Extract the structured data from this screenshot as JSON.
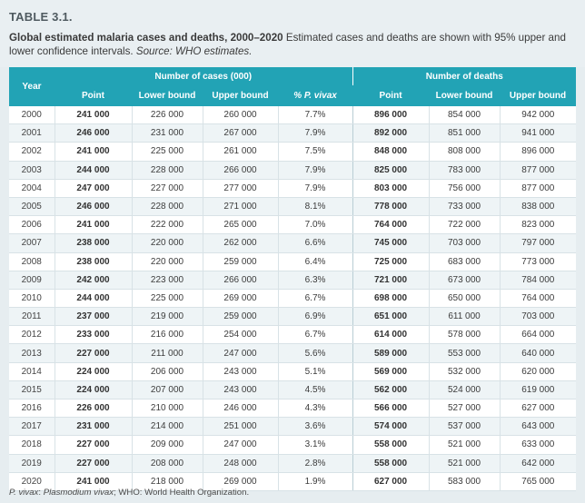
{
  "caption": {
    "table_label": "TABLE 3.1.",
    "title_bold": "Global estimated malaria cases and deaths, 2000–2020",
    "title_text": " Estimated cases and deaths are shown with 95% upper and lower confidence intervals. ",
    "title_source": "Source: WHO estimates."
  },
  "table": {
    "year_header": "Year",
    "cases_header": "Number of cases (000)",
    "deaths_header": "Number of deaths",
    "sub_headers": {
      "cases_point": "Point",
      "cases_lower": "Lower bound",
      "cases_upper": "Upper bound",
      "pvivax": "% P. vivax",
      "deaths_point": "Point",
      "deaths_lower": "Lower bound",
      "deaths_upper": "Upper bound"
    },
    "rows": [
      {
        "year": "2000",
        "cases_point": "241 000",
        "cases_lower": "226 000",
        "cases_upper": "260 000",
        "pvivax": "7.7%",
        "deaths_point": "896 000",
        "deaths_lower": "854 000",
        "deaths_upper": "942 000"
      },
      {
        "year": "2001",
        "cases_point": "246 000",
        "cases_lower": "231 000",
        "cases_upper": "267 000",
        "pvivax": "7.9%",
        "deaths_point": "892 000",
        "deaths_lower": "851 000",
        "deaths_upper": "941 000"
      },
      {
        "year": "2002",
        "cases_point": "241 000",
        "cases_lower": "225 000",
        "cases_upper": "261 000",
        "pvivax": "7.5%",
        "deaths_point": "848 000",
        "deaths_lower": "808 000",
        "deaths_upper": "896 000"
      },
      {
        "year": "2003",
        "cases_point": "244 000",
        "cases_lower": "228 000",
        "cases_upper": "266 000",
        "pvivax": "7.9%",
        "deaths_point": "825 000",
        "deaths_lower": "783 000",
        "deaths_upper": "877 000"
      },
      {
        "year": "2004",
        "cases_point": "247 000",
        "cases_lower": "227 000",
        "cases_upper": "277 000",
        "pvivax": "7.9%",
        "deaths_point": "803 000",
        "deaths_lower": "756 000",
        "deaths_upper": "877 000"
      },
      {
        "year": "2005",
        "cases_point": "246 000",
        "cases_lower": "228 000",
        "cases_upper": "271 000",
        "pvivax": "8.1%",
        "deaths_point": "778 000",
        "deaths_lower": "733 000",
        "deaths_upper": "838 000"
      },
      {
        "year": "2006",
        "cases_point": "241 000",
        "cases_lower": "222 000",
        "cases_upper": "265 000",
        "pvivax": "7.0%",
        "deaths_point": "764 000",
        "deaths_lower": "722 000",
        "deaths_upper": "823 000"
      },
      {
        "year": "2007",
        "cases_point": "238 000",
        "cases_lower": "220 000",
        "cases_upper": "262 000",
        "pvivax": "6.6%",
        "deaths_point": "745 000",
        "deaths_lower": "703 000",
        "deaths_upper": "797 000"
      },
      {
        "year": "2008",
        "cases_point": "238 000",
        "cases_lower": "220 000",
        "cases_upper": "259 000",
        "pvivax": "6.4%",
        "deaths_point": "725 000",
        "deaths_lower": "683 000",
        "deaths_upper": "773 000"
      },
      {
        "year": "2009",
        "cases_point": "242 000",
        "cases_lower": "223 000",
        "cases_upper": "266 000",
        "pvivax": "6.3%",
        "deaths_point": "721 000",
        "deaths_lower": "673 000",
        "deaths_upper": "784 000"
      },
      {
        "year": "2010",
        "cases_point": "244 000",
        "cases_lower": "225 000",
        "cases_upper": "269 000",
        "pvivax": "6.7%",
        "deaths_point": "698 000",
        "deaths_lower": "650 000",
        "deaths_upper": "764 000"
      },
      {
        "year": "2011",
        "cases_point": "237 000",
        "cases_lower": "219 000",
        "cases_upper": "259 000",
        "pvivax": "6.9%",
        "deaths_point": "651 000",
        "deaths_lower": "611 000",
        "deaths_upper": "703 000"
      },
      {
        "year": "2012",
        "cases_point": "233 000",
        "cases_lower": "216 000",
        "cases_upper": "254 000",
        "pvivax": "6.7%",
        "deaths_point": "614 000",
        "deaths_lower": "578 000",
        "deaths_upper": "664 000"
      },
      {
        "year": "2013",
        "cases_point": "227 000",
        "cases_lower": "211 000",
        "cases_upper": "247 000",
        "pvivax": "5.6%",
        "deaths_point": "589 000",
        "deaths_lower": "553 000",
        "deaths_upper": "640 000"
      },
      {
        "year": "2014",
        "cases_point": "224 000",
        "cases_lower": "206 000",
        "cases_upper": "243 000",
        "pvivax": "5.1%",
        "deaths_point": "569 000",
        "deaths_lower": "532 000",
        "deaths_upper": "620 000"
      },
      {
        "year": "2015",
        "cases_point": "224 000",
        "cases_lower": "207 000",
        "cases_upper": "243 000",
        "pvivax": "4.5%",
        "deaths_point": "562 000",
        "deaths_lower": "524 000",
        "deaths_upper": "619 000"
      },
      {
        "year": "2016",
        "cases_point": "226 000",
        "cases_lower": "210 000",
        "cases_upper": "246 000",
        "pvivax": "4.3%",
        "deaths_point": "566 000",
        "deaths_lower": "527 000",
        "deaths_upper": "627 000"
      },
      {
        "year": "2017",
        "cases_point": "231 000",
        "cases_lower": "214 000",
        "cases_upper": "251 000",
        "pvivax": "3.6%",
        "deaths_point": "574 000",
        "deaths_lower": "537 000",
        "deaths_upper": "643 000"
      },
      {
        "year": "2018",
        "cases_point": "227 000",
        "cases_lower": "209 000",
        "cases_upper": "247 000",
        "pvivax": "3.1%",
        "deaths_point": "558 000",
        "deaths_lower": "521 000",
        "deaths_upper": "633 000"
      },
      {
        "year": "2019",
        "cases_point": "227 000",
        "cases_lower": "208 000",
        "cases_upper": "248 000",
        "pvivax": "2.8%",
        "deaths_point": "558 000",
        "deaths_lower": "521 000",
        "deaths_upper": "642 000"
      },
      {
        "year": "2020",
        "cases_point": "241 000",
        "cases_lower": "218 000",
        "cases_upper": "269 000",
        "pvivax": "1.9%",
        "deaths_point": "627 000",
        "deaths_lower": "583 000",
        "deaths_upper": "765 000"
      }
    ]
  },
  "footnote": {
    "abbr1": "P. vivax",
    "def1": ": ",
    "abbr1_full": "Plasmodium vivax",
    "rest": "; WHO: World Health Organization."
  }
}
